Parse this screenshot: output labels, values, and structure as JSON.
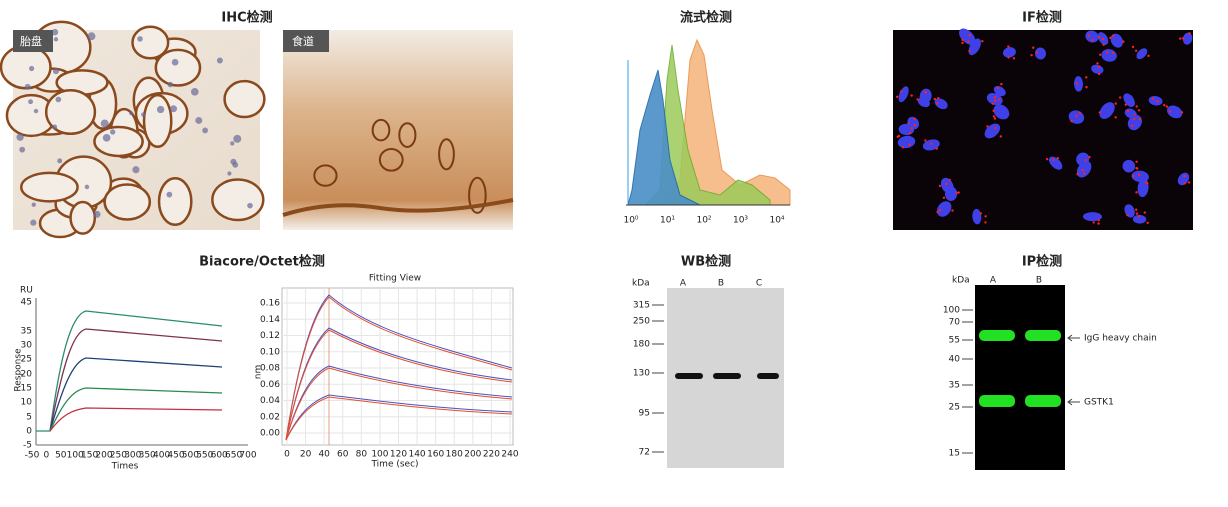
{
  "ihc": {
    "title": "IHC检测",
    "images": [
      "胎盘",
      "食道"
    ]
  },
  "flow": {
    "title": "流式检测",
    "xticks": [
      "10⁰",
      "10¹",
      "10²",
      "10³",
      "10⁴"
    ]
  },
  "if": {
    "title": "IF检测"
  },
  "biacore": {
    "title": "Biacore/Octet检测",
    "left": {
      "unit": "RU",
      "ylabel": "Response",
      "xlabel": "Times",
      "yticks": [
        "45",
        "35",
        "30",
        "25",
        "20",
        "15",
        "10",
        "5",
        "0",
        "-5"
      ],
      "xticks": [
        "-50",
        "0",
        "50",
        "100",
        "150",
        "200",
        "250",
        "300",
        "350",
        "400",
        "450",
        "500",
        "550",
        "600",
        "650",
        "700"
      ]
    },
    "right": {
      "title": "Fitting View",
      "ylabel": "nm",
      "xlabel": "Time (sec)",
      "yticks": [
        "0.16",
        "0.14",
        "0.12",
        "0.10",
        "0.08",
        "0.06",
        "0.04",
        "0.02",
        "0.00"
      ],
      "xticks": [
        "0",
        "20",
        "40",
        "60",
        "80",
        "100",
        "120",
        "140",
        "160",
        "180",
        "200",
        "220",
        "240"
      ]
    }
  },
  "wb": {
    "title": "WB检测",
    "unit": "kDa",
    "lanes": [
      "A",
      "B",
      "C"
    ],
    "markers": [
      "315",
      "250",
      "180",
      "130",
      "95",
      "72"
    ]
  },
  "ip": {
    "title": "IP检测",
    "unit": "kDa",
    "lanes": [
      "A",
      "B"
    ],
    "markers": [
      "100",
      "70",
      "55",
      "40",
      "35",
      "25",
      "15"
    ],
    "annotations": [
      "IgG heavy chain",
      "GSTK1"
    ]
  }
}
